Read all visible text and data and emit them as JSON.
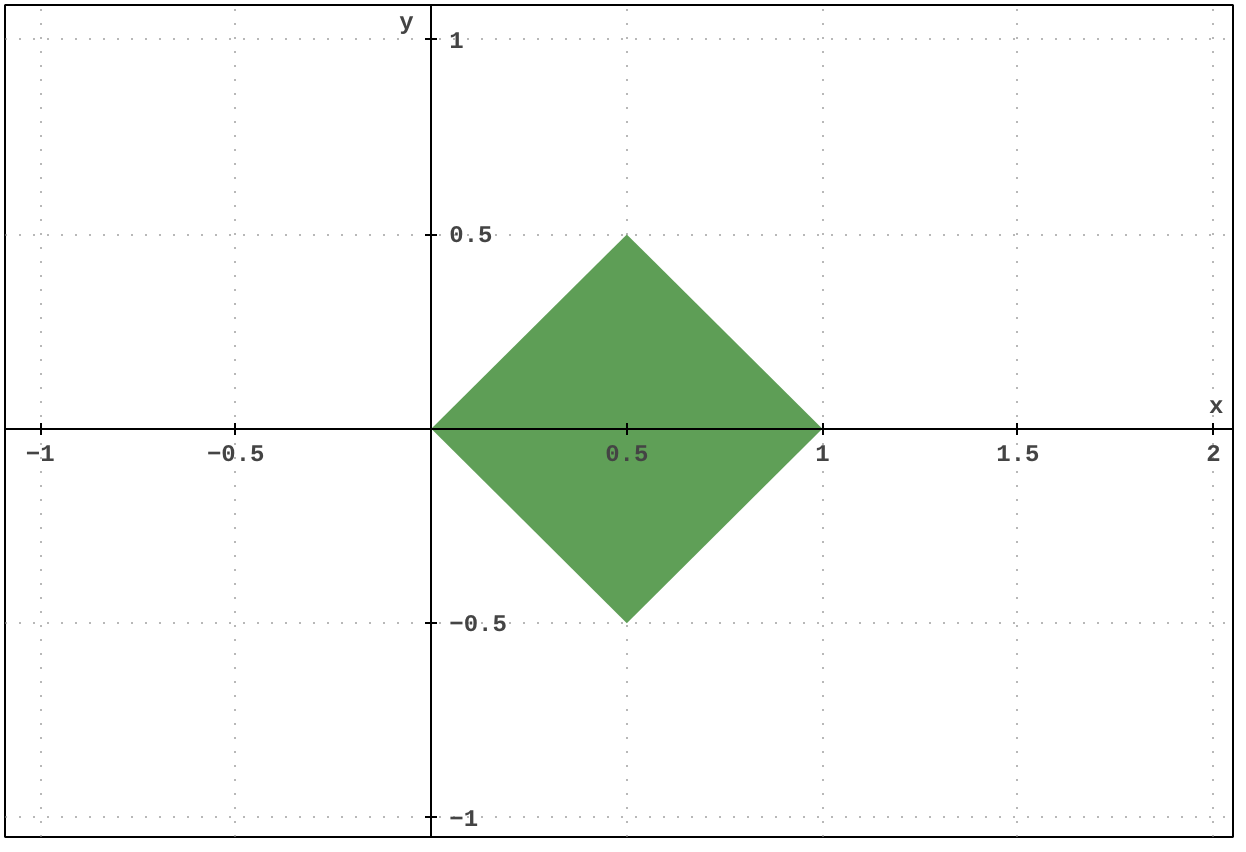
{
  "chart_data": {
    "type": "area",
    "xlabel": "x",
    "ylabel": "y",
    "x": [
      0,
      0.5,
      1
    ],
    "series": [
      {
        "color": "#5e9e56",
        "values": [
          0,
          0.5,
          0
        ]
      },
      {
        "color": "#5f9f57",
        "values": [
          0,
          -0.5,
          0
        ]
      }
    ],
    "xlim": [
      -1.09,
      2.05
    ],
    "ylim": [
      -1.05,
      1.09
    ],
    "xticks": [
      -1,
      -0.5,
      0.5,
      1,
      1.5,
      2
    ],
    "yticks": [
      -1,
      -0.5,
      0.5,
      1
    ],
    "grid": true
  }
}
